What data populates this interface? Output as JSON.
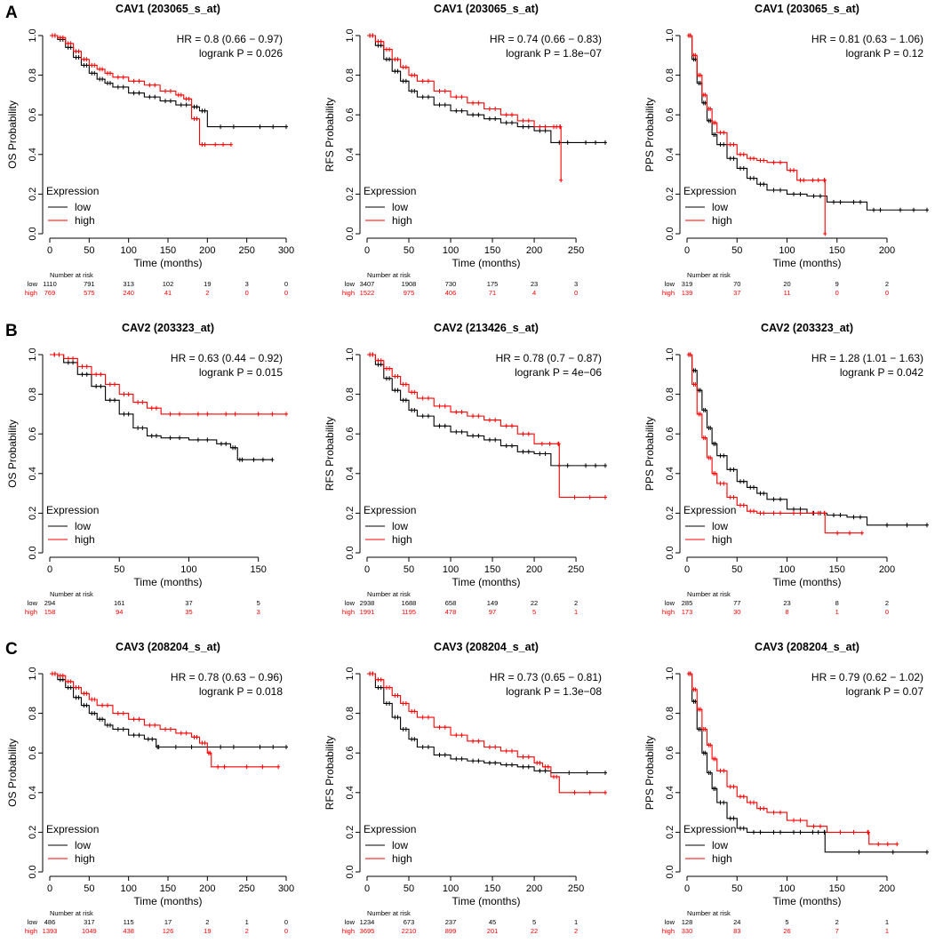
{
  "colors": {
    "low": "#000000",
    "high": "#ff0000",
    "axis": "#000000"
  },
  "common": {
    "xlabel": "Time (months)",
    "legend_title": "Expression",
    "legend_low": "low",
    "legend_high": "high",
    "risk_title": "Number at risk",
    "yticks": [
      0.0,
      0.2,
      0.4,
      0.6,
      0.8,
      1.0
    ],
    "ytick_labels": [
      "0.0",
      "0.2",
      "0.4",
      "0.6",
      "0.8",
      "1.0"
    ]
  },
  "panel_labels": [
    "A",
    "B",
    "C"
  ],
  "chart_data": [
    {
      "type": "line",
      "row": 0,
      "col": 0,
      "title": "CAV1 (203065_s_at)",
      "ylabel": "OS Probability",
      "xlim": [
        0,
        300
      ],
      "xticks": [
        0,
        50,
        100,
        150,
        200,
        250,
        300
      ],
      "ylim": [
        0,
        1
      ],
      "hr": "HR = 0.8 (0.66 − 0.97)",
      "p": "logrank P = 0.026",
      "series": [
        {
          "name": "low",
          "x": [
            0,
            10,
            20,
            30,
            40,
            50,
            60,
            70,
            80,
            100,
            120,
            140,
            160,
            180,
            190,
            200,
            250,
            300
          ],
          "y": [
            1,
            0.98,
            0.94,
            0.89,
            0.85,
            0.81,
            0.78,
            0.76,
            0.74,
            0.71,
            0.69,
            0.67,
            0.65,
            0.64,
            0.62,
            0.54,
            0.54,
            0.54
          ]
        },
        {
          "name": "high",
          "x": [
            0,
            10,
            20,
            30,
            40,
            50,
            60,
            70,
            80,
            100,
            120,
            140,
            160,
            170,
            180,
            190,
            200,
            230
          ],
          "y": [
            1,
            0.99,
            0.96,
            0.92,
            0.88,
            0.85,
            0.83,
            0.81,
            0.79,
            0.77,
            0.75,
            0.72,
            0.7,
            0.68,
            0.58,
            0.45,
            0.45,
            0.45
          ]
        }
      ],
      "risk": {
        "x": [
          0,
          50,
          100,
          150,
          200,
          250,
          300
        ],
        "low": [
          "1110",
          "791",
          "313",
          "102",
          "19",
          "3",
          "0"
        ],
        "high": [
          "769",
          "575",
          "240",
          "41",
          "2",
          "0",
          "0"
        ]
      }
    },
    {
      "type": "line",
      "row": 0,
      "col": 1,
      "title": "CAV1 (203065_s_at)",
      "ylabel": "RFS Probability",
      "xlim": [
        0,
        285
      ],
      "xticks": [
        0,
        50,
        100,
        150,
        200,
        250
      ],
      "ylim": [
        0,
        1
      ],
      "hr": "HR = 0.74 (0.66 − 0.83)",
      "p": "logrank P = 1.8e−07",
      "series": [
        {
          "name": "low",
          "x": [
            0,
            10,
            20,
            30,
            40,
            50,
            60,
            80,
            100,
            120,
            140,
            160,
            180,
            200,
            220,
            250,
            285
          ],
          "y": [
            1,
            0.95,
            0.88,
            0.82,
            0.77,
            0.72,
            0.69,
            0.65,
            0.62,
            0.6,
            0.58,
            0.56,
            0.54,
            0.52,
            0.46,
            0.46,
            0.46
          ]
        },
        {
          "name": "high",
          "x": [
            0,
            10,
            20,
            30,
            40,
            50,
            60,
            80,
            100,
            120,
            140,
            160,
            180,
            200,
            220,
            230,
            232
          ],
          "y": [
            1,
            0.97,
            0.93,
            0.88,
            0.84,
            0.8,
            0.77,
            0.72,
            0.69,
            0.66,
            0.63,
            0.6,
            0.57,
            0.54,
            0.54,
            0.54,
            0.27
          ]
        }
      ],
      "risk": {
        "x": [
          0,
          50,
          100,
          150,
          200,
          250
        ],
        "low": [
          "3407",
          "1908",
          "730",
          "175",
          "23",
          "3"
        ],
        "high": [
          "1522",
          "975",
          "406",
          "71",
          "4",
          "0"
        ]
      }
    },
    {
      "type": "line",
      "row": 0,
      "col": 2,
      "title": "CAV1 (203065_s_at)",
      "ylabel": "PPS Probability",
      "xlim": [
        0,
        240
      ],
      "xticks": [
        0,
        50,
        100,
        150,
        200
      ],
      "ylim": [
        0,
        1
      ],
      "hr": "HR = 0.81 (0.63 − 1.06)",
      "p": "logrank P = 0.12",
      "series": [
        {
          "name": "low",
          "x": [
            0,
            5,
            10,
            15,
            20,
            25,
            30,
            40,
            50,
            60,
            70,
            80,
            100,
            120,
            140,
            160,
            180,
            200,
            240
          ],
          "y": [
            1,
            0.88,
            0.76,
            0.66,
            0.57,
            0.5,
            0.45,
            0.38,
            0.33,
            0.28,
            0.25,
            0.22,
            0.2,
            0.19,
            0.16,
            0.16,
            0.12,
            0.12,
            0.12
          ]
        },
        {
          "name": "high",
          "x": [
            0,
            5,
            10,
            15,
            20,
            25,
            30,
            40,
            50,
            60,
            70,
            80,
            100,
            110,
            120,
            137,
            138
          ],
          "y": [
            1,
            0.9,
            0.8,
            0.7,
            0.63,
            0.56,
            0.51,
            0.45,
            0.4,
            0.38,
            0.37,
            0.36,
            0.32,
            0.27,
            0.27,
            0.27,
            0
          ]
        }
      ],
      "risk": {
        "x": [
          0,
          50,
          100,
          150,
          200
        ],
        "low": [
          "319",
          "70",
          "20",
          "9",
          "2"
        ],
        "high": [
          "139",
          "37",
          "11",
          "0",
          "0"
        ]
      }
    },
    {
      "type": "line",
      "row": 1,
      "col": 0,
      "title": "CAV2 (203323_at)",
      "ylabel": "OS  Probability",
      "xlim": [
        0,
        170
      ],
      "xticks": [
        0,
        50,
        100,
        150
      ],
      "ylim": [
        0,
        1
      ],
      "hr": "HR = 0.63 (0.44 − 0.92)",
      "p": "logrank P = 0.015",
      "series": [
        {
          "name": "low",
          "x": [
            0,
            10,
            20,
            30,
            40,
            50,
            60,
            70,
            80,
            100,
            120,
            130,
            135,
            140,
            160
          ],
          "y": [
            1,
            0.96,
            0.9,
            0.84,
            0.77,
            0.7,
            0.63,
            0.59,
            0.58,
            0.57,
            0.55,
            0.53,
            0.47,
            0.47,
            0.47
          ]
        },
        {
          "name": "high",
          "x": [
            0,
            10,
            20,
            30,
            40,
            50,
            60,
            70,
            80,
            100,
            120,
            140,
            170
          ],
          "y": [
            1,
            0.98,
            0.94,
            0.9,
            0.85,
            0.8,
            0.76,
            0.73,
            0.7,
            0.7,
            0.7,
            0.7,
            0.7
          ]
        }
      ],
      "risk": {
        "x": [
          0,
          50,
          100,
          150
        ],
        "low": [
          "294",
          "161",
          "37",
          "5"
        ],
        "high": [
          "158",
          "94",
          "35",
          "3"
        ]
      }
    },
    {
      "type": "line",
      "row": 1,
      "col": 1,
      "title": "CAV2 (213426_s_at)",
      "ylabel": "RFS Probability",
      "xlim": [
        0,
        285
      ],
      "xticks": [
        0,
        50,
        100,
        150,
        200,
        250
      ],
      "ylim": [
        0,
        1
      ],
      "hr": "HR = 0.78 (0.7 − 0.87)",
      "p": "logrank P = 4e−06",
      "series": [
        {
          "name": "low",
          "x": [
            0,
            10,
            20,
            30,
            40,
            50,
            60,
            80,
            100,
            120,
            140,
            160,
            180,
            200,
            220,
            250,
            285
          ],
          "y": [
            1,
            0.95,
            0.88,
            0.82,
            0.77,
            0.72,
            0.69,
            0.64,
            0.61,
            0.59,
            0.57,
            0.54,
            0.51,
            0.5,
            0.44,
            0.44,
            0.44
          ]
        },
        {
          "name": "high",
          "x": [
            0,
            10,
            20,
            30,
            40,
            50,
            60,
            80,
            100,
            120,
            140,
            160,
            180,
            200,
            228,
            230,
            285
          ],
          "y": [
            1,
            0.97,
            0.93,
            0.89,
            0.85,
            0.81,
            0.78,
            0.74,
            0.71,
            0.69,
            0.67,
            0.64,
            0.6,
            0.55,
            0.55,
            0.28,
            0.28
          ]
        }
      ],
      "risk": {
        "x": [
          0,
          50,
          100,
          150,
          200,
          250
        ],
        "low": [
          "2938",
          "1688",
          "658",
          "149",
          "22",
          "2"
        ],
        "high": [
          "1991",
          "1195",
          "478",
          "97",
          "5",
          "1"
        ]
      }
    },
    {
      "type": "line",
      "row": 1,
      "col": 2,
      "title": "CAV2 (203323_at)",
      "ylabel": "PPS Probability",
      "xlim": [
        0,
        240
      ],
      "xticks": [
        0,
        50,
        100,
        150,
        200
      ],
      "ylim": [
        0,
        1
      ],
      "hr": "HR = 1.28 (1.01 − 1.63)",
      "p": "logrank P = 0.042",
      "series": [
        {
          "name": "low",
          "x": [
            0,
            5,
            10,
            15,
            20,
            25,
            30,
            40,
            50,
            60,
            70,
            80,
            100,
            120,
            140,
            160,
            180,
            240
          ],
          "y": [
            1,
            0.92,
            0.82,
            0.72,
            0.63,
            0.55,
            0.49,
            0.42,
            0.36,
            0.33,
            0.3,
            0.27,
            0.22,
            0.2,
            0.19,
            0.18,
            0.14,
            0.14
          ]
        },
        {
          "name": "high",
          "x": [
            0,
            5,
            10,
            15,
            20,
            25,
            30,
            40,
            50,
            60,
            70,
            80,
            100,
            120,
            137,
            138,
            175
          ],
          "y": [
            1,
            0.85,
            0.7,
            0.58,
            0.48,
            0.4,
            0.35,
            0.28,
            0.24,
            0.21,
            0.2,
            0.2,
            0.2,
            0.2,
            0.2,
            0.1,
            0.1
          ]
        }
      ],
      "risk": {
        "x": [
          0,
          50,
          100,
          150,
          200
        ],
        "low": [
          "285",
          "77",
          "23",
          "8",
          "2"
        ],
        "high": [
          "173",
          "30",
          "8",
          "1",
          "0"
        ]
      }
    },
    {
      "type": "line",
      "row": 2,
      "col": 0,
      "title": "CAV3 (208204_s_at)",
      "ylabel": "OS Probability",
      "xlim": [
        0,
        300
      ],
      "xticks": [
        0,
        50,
        100,
        150,
        200,
        250,
        300
      ],
      "ylim": [
        0,
        1
      ],
      "hr": "HR = 0.78 (0.63 − 0.96)",
      "p": "logrank P = 0.018",
      "series": [
        {
          "name": "low",
          "x": [
            0,
            10,
            20,
            30,
            40,
            50,
            60,
            70,
            80,
            100,
            120,
            135,
            140,
            200,
            250,
            300
          ],
          "y": [
            1,
            0.97,
            0.93,
            0.88,
            0.84,
            0.8,
            0.77,
            0.74,
            0.72,
            0.69,
            0.67,
            0.63,
            0.63,
            0.63,
            0.63,
            0.63
          ]
        },
        {
          "name": "high",
          "x": [
            0,
            10,
            20,
            30,
            40,
            50,
            60,
            80,
            100,
            120,
            140,
            160,
            180,
            190,
            200,
            205,
            230,
            290
          ],
          "y": [
            1,
            0.99,
            0.96,
            0.93,
            0.9,
            0.87,
            0.84,
            0.8,
            0.77,
            0.74,
            0.72,
            0.7,
            0.68,
            0.65,
            0.6,
            0.53,
            0.53,
            0.53
          ]
        }
      ],
      "risk": {
        "x": [
          0,
          50,
          100,
          150,
          200,
          250,
          300
        ],
        "low": [
          "486",
          "317",
          "115",
          "17",
          "2",
          "1",
          "0"
        ],
        "high": [
          "1393",
          "1049",
          "438",
          "126",
          "19",
          "2",
          "0"
        ]
      }
    },
    {
      "type": "line",
      "row": 2,
      "col": 1,
      "title": "CAV3 (208204_s_at)",
      "ylabel": "RFS Probability",
      "xlim": [
        0,
        285
      ],
      "xticks": [
        0,
        50,
        100,
        150,
        200,
        250
      ],
      "ylim": [
        0,
        1
      ],
      "hr": "HR = 0.73 (0.65 − 0.81)",
      "p": "logrank P = 1.3e−08",
      "series": [
        {
          "name": "low",
          "x": [
            0,
            10,
            20,
            30,
            40,
            50,
            60,
            80,
            100,
            120,
            140,
            160,
            180,
            200,
            220,
            285
          ],
          "y": [
            1,
            0.93,
            0.85,
            0.78,
            0.72,
            0.67,
            0.63,
            0.59,
            0.57,
            0.56,
            0.55,
            0.54,
            0.53,
            0.51,
            0.5,
            0.5
          ]
        },
        {
          "name": "high",
          "x": [
            0,
            10,
            20,
            30,
            40,
            50,
            60,
            80,
            100,
            120,
            140,
            160,
            180,
            200,
            210,
            220,
            230,
            285
          ],
          "y": [
            1,
            0.97,
            0.93,
            0.89,
            0.85,
            0.81,
            0.78,
            0.73,
            0.69,
            0.66,
            0.63,
            0.61,
            0.58,
            0.55,
            0.53,
            0.48,
            0.4,
            0.4
          ]
        }
      ],
      "risk": {
        "x": [
          0,
          50,
          100,
          150,
          200,
          250
        ],
        "low": [
          "1234",
          "673",
          "237",
          "45",
          "5",
          "1"
        ],
        "high": [
          "3695",
          "2210",
          "899",
          "201",
          "22",
          "2"
        ]
      }
    },
    {
      "type": "line",
      "row": 2,
      "col": 2,
      "title": "CAV3 (208204_s_at)",
      "ylabel": "PPS Probability",
      "xlim": [
        0,
        240
      ],
      "xticks": [
        0,
        50,
        100,
        150,
        200
      ],
      "ylim": [
        0,
        1
      ],
      "hr": "HR = 0.79 (0.62 − 1.02)",
      "p": "logrank P = 0.07",
      "series": [
        {
          "name": "low",
          "x": [
            0,
            5,
            10,
            15,
            20,
            25,
            30,
            40,
            50,
            60,
            80,
            100,
            120,
            137,
            138,
            240
          ],
          "y": [
            1,
            0.86,
            0.72,
            0.6,
            0.5,
            0.42,
            0.35,
            0.27,
            0.22,
            0.2,
            0.2,
            0.2,
            0.2,
            0.2,
            0.1,
            0.1
          ]
        },
        {
          "name": "high",
          "x": [
            0,
            5,
            10,
            15,
            20,
            25,
            30,
            40,
            50,
            60,
            70,
            80,
            100,
            120,
            140,
            180,
            182,
            210
          ],
          "y": [
            1,
            0.92,
            0.82,
            0.72,
            0.64,
            0.57,
            0.51,
            0.43,
            0.38,
            0.35,
            0.32,
            0.3,
            0.26,
            0.23,
            0.2,
            0.2,
            0.14,
            0.14
          ]
        }
      ],
      "risk": {
        "x": [
          0,
          50,
          100,
          150,
          200
        ],
        "low": [
          "128",
          "24",
          "5",
          "2",
          "1"
        ],
        "high": [
          "330",
          "83",
          "26",
          "7",
          "1"
        ]
      }
    }
  ]
}
